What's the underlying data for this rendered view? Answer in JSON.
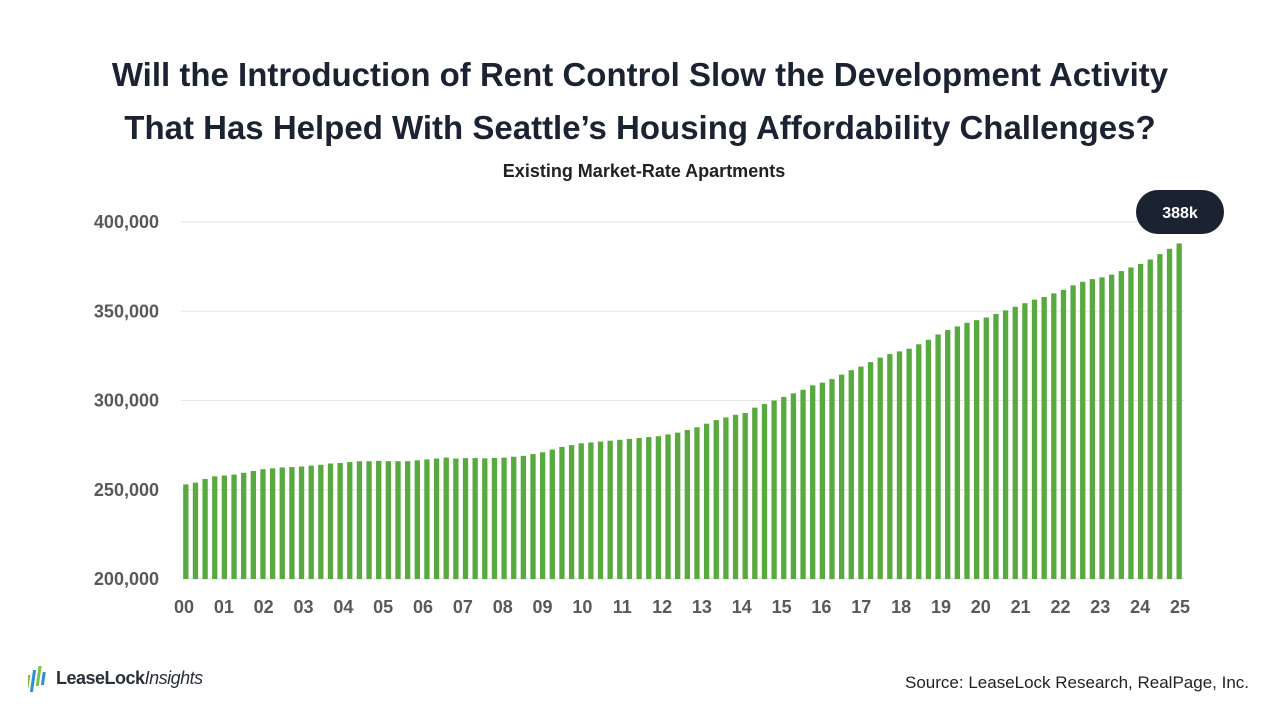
{
  "title_line1": "Will the Introduction of Rent Control Slow the Development Activity",
  "title_line2": "That Has Helped With Seattle’s Housing Affordability Challenges?",
  "subtitle": "Existing Market-Rate Apartments",
  "source": "Source: LeaseLock Research, RealPage, Inc.",
  "logo": {
    "text_bold": "LeaseLock",
    "text_italic": "Insights"
  },
  "colors": {
    "bar": "#58a93e",
    "callout_bg": "#1b2333",
    "grid": "#e6e6e6",
    "text": "#1b2333"
  },
  "chart_data": {
    "type": "bar",
    "title": "Existing Market-Rate Apartments",
    "xlabel": "",
    "ylabel": "",
    "ylim": [
      200000,
      400000
    ],
    "yticks": [
      200000,
      250000,
      300000,
      350000,
      400000
    ],
    "ytick_labels": [
      "200,000",
      "250,000",
      "300,000",
      "350,000",
      "400,000"
    ],
    "xtick_labels": [
      "00",
      "01",
      "02",
      "03",
      "04",
      "05",
      "06",
      "07",
      "08",
      "09",
      "10",
      "11",
      "12",
      "13",
      "14",
      "15",
      "16",
      "17",
      "18",
      "19",
      "20",
      "21",
      "22",
      "23",
      "24",
      "25"
    ],
    "grid": true,
    "frequency": "quarterly",
    "callout": {
      "label": "388k",
      "value": 388000
    },
    "values": [
      253000,
      254000,
      256000,
      257500,
      258000,
      258500,
      259500,
      260500,
      261500,
      262000,
      262500,
      262700,
      263000,
      263500,
      264000,
      264700,
      265000,
      265500,
      266000,
      266000,
      266200,
      266000,
      266000,
      266000,
      266500,
      267000,
      267500,
      268000,
      267500,
      267700,
      267800,
      267600,
      267800,
      268000,
      268500,
      269000,
      270000,
      271000,
      272500,
      274000,
      275000,
      276000,
      276500,
      277000,
      277500,
      278000,
      278500,
      279000,
      279500,
      280000,
      281000,
      282000,
      283500,
      285000,
      287000,
      289000,
      290500,
      292000,
      293000,
      296000,
      298000,
      300000,
      302000,
      304000,
      306000,
      308500,
      310000,
      312000,
      314500,
      317000,
      319000,
      321500,
      324000,
      326000,
      327500,
      329000,
      331500,
      334000,
      337000,
      339500,
      341500,
      343500,
      345000,
      346500,
      348500,
      350500,
      352500,
      354500,
      356500,
      358000,
      360000,
      362000,
      364500,
      366500,
      368000,
      369000,
      370500,
      372500,
      374500,
      376500,
      379000,
      382000,
      385000,
      388000
    ]
  }
}
